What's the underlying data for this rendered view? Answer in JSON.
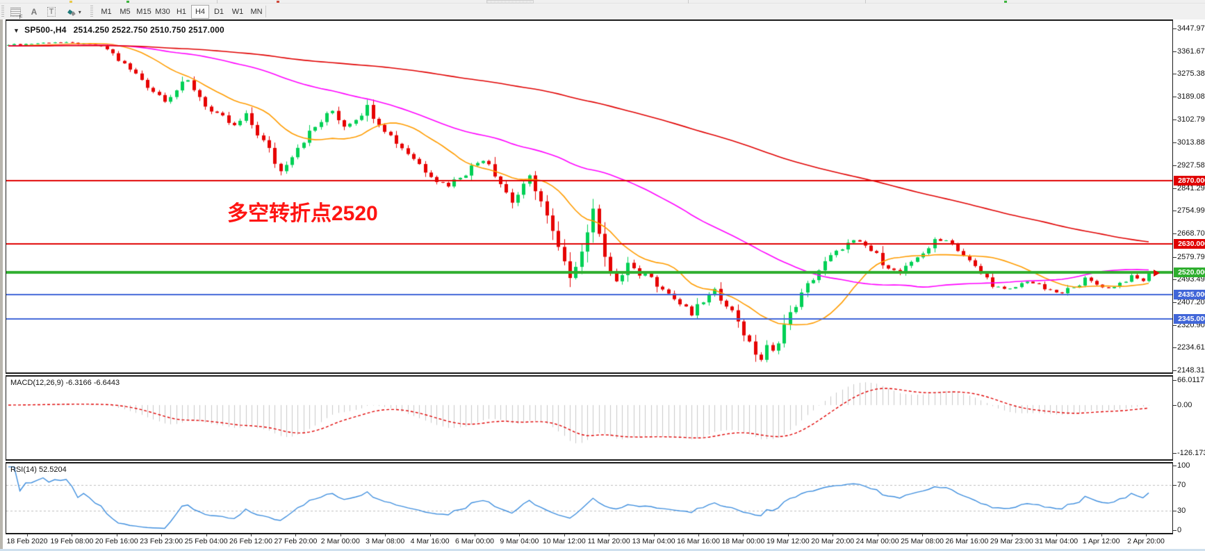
{
  "toolbar": {
    "tools": [
      {
        "label": "F"
      },
      {
        "label": "A"
      },
      {
        "label": "T"
      },
      {
        "label": "◆",
        "caret": "▾"
      }
    ],
    "timeframes": [
      "M1",
      "M5",
      "M15",
      "M30",
      "H1",
      "H4",
      "D1",
      "W1",
      "MN"
    ],
    "active_timeframe": "H4"
  },
  "chart": {
    "collapse_arrow": "▼",
    "symbol_title": "SP500-,H4",
    "ohlc_text": "2514.250 2522.750 2510.750 2517.000"
  },
  "annotation": {
    "text": "多空转折点2520",
    "color": "#ff1412"
  },
  "price_axis": {
    "ticks": [
      "3447.970",
      "3361.675",
      "3275.380",
      "3189.085",
      "3102.790",
      "3013.880",
      "2927.585",
      "2841.290",
      "2754.995",
      "2668.700",
      "2579.790",
      "2493.495",
      "2407.200",
      "2320.905",
      "2234.610",
      "2148.315"
    ],
    "badges": [
      {
        "label": "2870.000",
        "price": 2870.0,
        "color": "#e00000"
      },
      {
        "label": "2630.000",
        "price": 2630.0,
        "color": "#e00000"
      },
      {
        "label": "2520.000",
        "price": 2520.0,
        "color": "#2eae2e"
      },
      {
        "label": "2435.000",
        "price": 2435.0,
        "color": "#4166d8"
      },
      {
        "label": "2345.000",
        "price": 2345.0,
        "color": "#4166d8"
      }
    ]
  },
  "macd_panel": {
    "label": "MACD(12,26,9) -6.3166 -6.6443",
    "axis": [
      "66.0117",
      "0.00",
      "-126.173"
    ]
  },
  "rsi_panel": {
    "label": "RSI(14) 52.5204",
    "axis": [
      "100",
      "70",
      "30",
      "0"
    ]
  },
  "time_axis": {
    "labels": [
      "18 Feb 2020",
      "19 Feb 08:00",
      "20 Feb 16:00",
      "23 Feb 23:00",
      "25 Feb 04:00",
      "26 Feb 12:00",
      "27 Feb 20:00",
      "2 Mar 00:00",
      "3 Mar 08:00",
      "4 Mar 16:00",
      "6 Mar 00:00",
      "9 Mar 04:00",
      "10 Mar 12:00",
      "11 Mar 20:00",
      "13 Mar 04:00",
      "16 Mar 16:00",
      "18 Mar 00:00",
      "19 Mar 12:00",
      "20 Mar 20:00",
      "24 Mar 00:00",
      "25 Mar 08:00",
      "26 Mar 16:00",
      "29 Mar 23:00",
      "31 Mar 04:00",
      "1 Apr 12:00",
      "2 Apr 20:00"
    ]
  },
  "chart_data": {
    "type": "candlestick",
    "symbol": "SP500-",
    "timeframe": "H4",
    "open": 2514.25,
    "high": 2522.75,
    "low": 2510.75,
    "close": 2517.0,
    "bars": 198,
    "price_axis_range": {
      "top": 3447.97,
      "bottom": 2148.315
    },
    "close_waypoints": [
      [
        0,
        3385
      ],
      [
        4,
        3390
      ],
      [
        8,
        3396
      ],
      [
        12,
        3390
      ],
      [
        15,
        3384
      ],
      [
        17,
        3370
      ],
      [
        19,
        3330
      ],
      [
        21,
        3290
      ],
      [
        23,
        3255
      ],
      [
        25,
        3210
      ],
      [
        27,
        3180
      ],
      [
        29,
        3215
      ],
      [
        31,
        3250
      ],
      [
        33,
        3190
      ],
      [
        35,
        3130
      ],
      [
        37,
        3105
      ],
      [
        39,
        3075
      ],
      [
        41,
        3115
      ],
      [
        43,
        3050
      ],
      [
        45,
        2985
      ],
      [
        46,
        2940
      ],
      [
        47,
        2905
      ],
      [
        48,
        2940
      ],
      [
        50,
        3000
      ],
      [
        52,
        3050
      ],
      [
        54,
        3095
      ],
      [
        56,
        3135
      ],
      [
        58,
        3080
      ],
      [
        60,
        3110
      ],
      [
        62,
        3148
      ],
      [
        64,
        3090
      ],
      [
        66,
        3040
      ],
      [
        68,
        2995
      ],
      [
        70,
        2955
      ],
      [
        72,
        2910
      ],
      [
        74,
        2870
      ],
      [
        76,
        2852
      ],
      [
        78,
        2885
      ],
      [
        80,
        2920
      ],
      [
        82,
        2955
      ],
      [
        83,
        2935
      ],
      [
        85,
        2860
      ],
      [
        87,
        2790
      ],
      [
        89,
        2845
      ],
      [
        90,
        2880
      ],
      [
        91,
        2840
      ],
      [
        92,
        2790
      ],
      [
        93,
        2730
      ],
      [
        94,
        2670
      ],
      [
        95,
        2610
      ],
      [
        96,
        2550
      ],
      [
        97,
        2510
      ],
      [
        98,
        2555
      ],
      [
        99,
        2600
      ],
      [
        100,
        2680
      ],
      [
        101,
        2750
      ],
      [
        102,
        2680
      ],
      [
        103,
        2590
      ],
      [
        104,
        2520
      ],
      [
        105,
        2475
      ],
      [
        106,
        2515
      ],
      [
        107,
        2555
      ],
      [
        108,
        2530
      ],
      [
        109,
        2495
      ],
      [
        110,
        2520
      ],
      [
        112,
        2480
      ],
      [
        114,
        2440
      ],
      [
        116,
        2400
      ],
      [
        118,
        2360
      ],
      [
        120,
        2410
      ],
      [
        122,
        2450
      ],
      [
        124,
        2400
      ],
      [
        126,
        2340
      ],
      [
        127,
        2290
      ],
      [
        128,
        2245
      ],
      [
        129,
        2215
      ],
      [
        130,
        2190
      ],
      [
        131,
        2235
      ],
      [
        132,
        2215
      ],
      [
        133,
        2265
      ],
      [
        134,
        2320
      ],
      [
        136,
        2400
      ],
      [
        138,
        2470
      ],
      [
        140,
        2530
      ],
      [
        142,
        2580
      ],
      [
        144,
        2615
      ],
      [
        146,
        2640
      ],
      [
        148,
        2620
      ],
      [
        150,
        2585
      ],
      [
        152,
        2540
      ],
      [
        154,
        2515
      ],
      [
        156,
        2555
      ],
      [
        158,
        2600
      ],
      [
        160,
        2635
      ],
      [
        162,
        2645
      ],
      [
        164,
        2610
      ],
      [
        166,
        2560
      ],
      [
        168,
        2515
      ],
      [
        170,
        2480
      ],
      [
        172,
        2450
      ],
      [
        174,
        2465
      ],
      [
        176,
        2490
      ],
      [
        178,
        2470
      ],
      [
        180,
        2450
      ],
      [
        182,
        2440
      ],
      [
        184,
        2470
      ],
      [
        186,
        2490
      ],
      [
        188,
        2475
      ],
      [
        190,
        2460
      ],
      [
        192,
        2480
      ],
      [
        194,
        2500
      ],
      [
        196,
        2490
      ],
      [
        197,
        2517
      ]
    ],
    "horizontal_lines": [
      {
        "price": 2870,
        "color": "#e00000",
        "width": 2
      },
      {
        "price": 2630,
        "color": "#e00000",
        "width": 2
      },
      {
        "price": 2520,
        "color": "#2eae2e",
        "width": 4
      },
      {
        "price": 2435,
        "color": "#4166d8",
        "width": 2
      },
      {
        "price": 2345,
        "color": "#4166d8",
        "width": 2
      }
    ],
    "moving_averages": [
      {
        "period": 16,
        "color": "#ff9c00"
      },
      {
        "period": 56,
        "color": "#ff00ff"
      },
      {
        "period": 150,
        "color": "#e00000"
      }
    ],
    "candle_colors": {
      "up": "#00d055",
      "down": "#e60000"
    },
    "macd": {
      "params": [
        12,
        26,
        9
      ],
      "last_main": -6.3166,
      "last_signal": -6.6443,
      "axis_max": 66.0117,
      "axis_min": -126.173,
      "histogram_color": "#c8c8c8",
      "signal_color": "#e00000"
    },
    "rsi": {
      "period": 14,
      "last": 52.5204,
      "levels": [
        70,
        30
      ],
      "range": [
        0,
        100
      ],
      "line_color": "#3e8ede"
    }
  }
}
